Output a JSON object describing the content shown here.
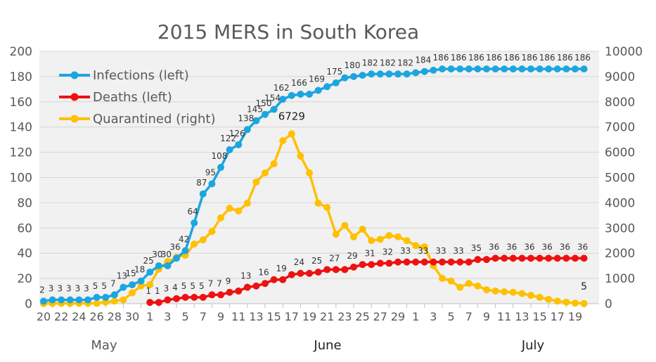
{
  "chart_data": {
    "type": "line",
    "title": "2015 MERS in South Korea",
    "x_start": "2015-05-20",
    "x_end": "2015-07-20",
    "x_tick_labels": [
      "20",
      "22",
      "24",
      "26",
      "28",
      "30",
      "1",
      "3",
      "5",
      "7",
      "9",
      "11",
      "13",
      "15",
      "17",
      "19",
      "21",
      "23",
      "25",
      "27",
      "29",
      "1",
      "3",
      "5",
      "7",
      "9",
      "11",
      "13",
      "15",
      "17",
      "19"
    ],
    "month_labels": [
      "May",
      "June",
      "July"
    ],
    "y_left": {
      "min": 0,
      "max": 200,
      "step": 20
    },
    "y_right": {
      "min": 0,
      "max": 10000,
      "step": 1000
    },
    "grid": true,
    "legend_position": "top-left",
    "series": [
      {
        "name": "Infections (left)",
        "axis": "left",
        "color": "#1ba6df",
        "start_index": 0,
        "values": [
          2,
          3,
          3,
          3,
          3,
          3,
          5,
          5,
          7,
          13,
          15,
          18,
          25,
          30,
          30,
          36,
          42,
          64,
          87,
          95,
          108,
          122,
          126,
          138,
          145,
          150,
          154,
          162,
          165,
          166,
          166,
          169,
          172,
          175,
          179,
          180,
          181,
          182,
          182,
          182,
          182,
          182,
          183,
          184,
          185,
          186,
          186,
          186,
          186,
          186,
          186,
          186,
          186,
          186,
          186,
          186,
          186,
          186,
          186,
          186,
          186,
          186
        ],
        "labels": [
          2,
          3,
          3,
          3,
          3,
          3,
          5,
          5,
          7,
          13,
          15,
          18,
          25,
          30,
          30,
          36,
          42,
          64,
          87,
          95,
          108,
          122,
          126,
          138,
          145,
          150,
          154,
          162,
          null,
          166,
          null,
          169,
          null,
          175,
          null,
          180,
          null,
          182,
          null,
          182,
          null,
          182,
          null,
          184,
          null,
          186,
          null,
          186,
          null,
          186,
          null,
          186,
          null,
          186,
          null,
          186,
          null,
          186,
          null,
          186,
          null,
          186
        ]
      },
      {
        "name": "Deaths (left)",
        "axis": "left",
        "color": "#ee1111",
        "start_index": 12,
        "values": [
          1,
          1,
          3,
          4,
          5,
          5,
          5,
          7,
          7,
          9,
          10,
          13,
          14,
          16,
          19,
          19,
          23,
          24,
          24,
          25,
          27,
          27,
          27,
          29,
          31,
          31,
          32,
          32,
          33,
          33,
          33,
          33,
          33,
          33,
          33,
          33,
          33,
          35,
          35,
          36,
          36,
          36,
          36,
          36,
          36,
          36,
          36,
          36,
          36,
          36
        ],
        "labels": [
          1,
          1,
          3,
          4,
          5,
          5,
          5,
          7,
          7,
          9,
          null,
          13,
          null,
          16,
          null,
          19,
          null,
          24,
          null,
          25,
          null,
          27,
          null,
          29,
          null,
          31,
          null,
          32,
          null,
          33,
          null,
          33,
          null,
          33,
          null,
          33,
          null,
          35,
          null,
          36,
          null,
          36,
          null,
          36,
          null,
          36,
          null,
          36,
          null,
          36
        ]
      },
      {
        "name": "Quarantined (right)",
        "axis": "right",
        "color": "#ffc000",
        "start_index": 0,
        "values": [
          0,
          10,
          10,
          10,
          10,
          10,
          10,
          60,
          100,
          150,
          430,
          705,
          750,
          1370,
          1665,
          1840,
          1920,
          2360,
          2530,
          2860,
          3400,
          3780,
          3675,
          3980,
          4820,
          5180,
          5540,
          6460,
          6729,
          5850,
          5180,
          3980,
          3815,
          2750,
          3100,
          2650,
          2950,
          2500,
          2550,
          2700,
          2650,
          2500,
          2300,
          2250,
          1500,
          1000,
          900,
          650,
          800,
          700,
          550,
          500,
          470,
          450,
          400,
          330,
          250,
          170,
          100,
          60,
          20,
          5
        ],
        "annotations": [
          {
            "index": 28,
            "label": "6729"
          },
          {
            "index": 61,
            "label": "5"
          }
        ]
      }
    ]
  }
}
